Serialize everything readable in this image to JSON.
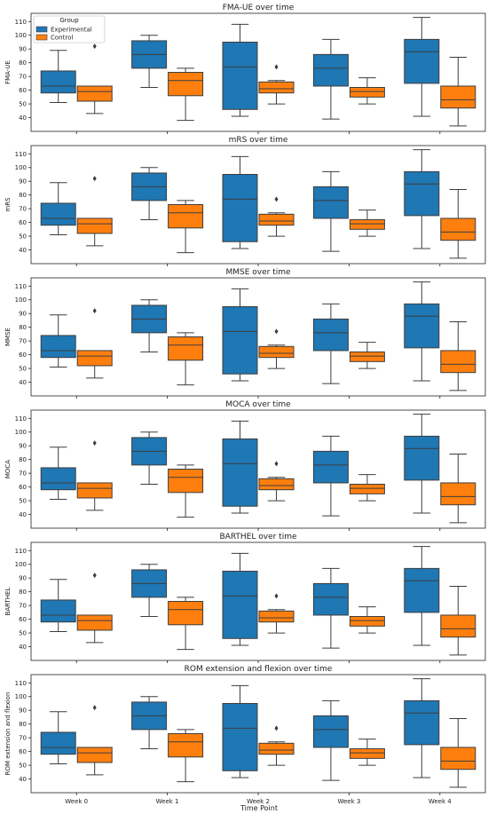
{
  "figure": {
    "xlabel": "Time Point",
    "legend": {
      "title": "Group",
      "placement": "upper-left"
    }
  },
  "chart_data": [
    {
      "type": "box",
      "title": "FMA-UE over time",
      "ylabel": "FMA-UE",
      "ylim": [
        30,
        116
      ],
      "yticks": [
        40,
        50,
        60,
        70,
        80,
        90,
        100,
        110
      ],
      "categories": [
        "Week 0",
        "Week 1",
        "Week 2",
        "Week 3",
        "Week 4"
      ],
      "series": [
        {
          "name": "Experimental",
          "color": "#1f77b4",
          "boxes": [
            {
              "whisker_low": 51,
              "q1": 58,
              "median": 63,
              "q3": 74,
              "whisker_high": 89,
              "outliers": []
            },
            {
              "whisker_low": 62,
              "q1": 76,
              "median": 86,
              "q3": 96,
              "whisker_high": 100,
              "outliers": []
            },
            {
              "whisker_low": 41,
              "q1": 46,
              "median": 77,
              "q3": 95,
              "whisker_high": 108,
              "outliers": []
            },
            {
              "whisker_low": 39,
              "q1": 63,
              "median": 76,
              "q3": 86,
              "whisker_high": 97,
              "outliers": []
            },
            {
              "whisker_low": 41,
              "q1": 65,
              "median": 88,
              "q3": 97,
              "whisker_high": 113,
              "outliers": []
            }
          ]
        },
        {
          "name": "Control",
          "color": "#ff7f0e",
          "boxes": [
            {
              "whisker_low": 43,
              "q1": 52,
              "median": 59,
              "q3": 63,
              "whisker_high": 63,
              "outliers": [
                92
              ]
            },
            {
              "whisker_low": 38,
              "q1": 56,
              "median": 67,
              "q3": 73,
              "whisker_high": 76,
              "outliers": []
            },
            {
              "whisker_low": 50,
              "q1": 58,
              "median": 61,
              "q3": 66,
              "whisker_high": 67,
              "outliers": [
                77
              ]
            },
            {
              "whisker_low": 50,
              "q1": 55,
              "median": 59,
              "q3": 62,
              "whisker_high": 69,
              "outliers": []
            },
            {
              "whisker_low": 34,
              "q1": 47,
              "median": 53,
              "q3": 63,
              "whisker_high": 84,
              "outliers": []
            }
          ]
        }
      ]
    },
    {
      "type": "box",
      "title": "mRS over time",
      "ylabel": "mRS",
      "ylim": [
        30,
        116
      ],
      "yticks": [
        40,
        50,
        60,
        70,
        80,
        90,
        100,
        110
      ],
      "categories": [
        "Week 0",
        "Week 1",
        "Week 2",
        "Week 3",
        "Week 4"
      ],
      "series": [
        {
          "name": "Experimental",
          "color": "#1f77b4",
          "boxes": [
            {
              "whisker_low": 51,
              "q1": 58,
              "median": 63,
              "q3": 74,
              "whisker_high": 89,
              "outliers": []
            },
            {
              "whisker_low": 62,
              "q1": 76,
              "median": 86,
              "q3": 96,
              "whisker_high": 100,
              "outliers": []
            },
            {
              "whisker_low": 41,
              "q1": 46,
              "median": 77,
              "q3": 95,
              "whisker_high": 108,
              "outliers": []
            },
            {
              "whisker_low": 39,
              "q1": 63,
              "median": 76,
              "q3": 86,
              "whisker_high": 97,
              "outliers": []
            },
            {
              "whisker_low": 41,
              "q1": 65,
              "median": 88,
              "q3": 97,
              "whisker_high": 113,
              "outliers": []
            }
          ]
        },
        {
          "name": "Control",
          "color": "#ff7f0e",
          "boxes": [
            {
              "whisker_low": 43,
              "q1": 52,
              "median": 59,
              "q3": 63,
              "whisker_high": 63,
              "outliers": [
                92
              ]
            },
            {
              "whisker_low": 38,
              "q1": 56,
              "median": 67,
              "q3": 73,
              "whisker_high": 76,
              "outliers": []
            },
            {
              "whisker_low": 50,
              "q1": 58,
              "median": 61,
              "q3": 66,
              "whisker_high": 67,
              "outliers": [
                77
              ]
            },
            {
              "whisker_low": 50,
              "q1": 55,
              "median": 59,
              "q3": 62,
              "whisker_high": 69,
              "outliers": []
            },
            {
              "whisker_low": 34,
              "q1": 47,
              "median": 53,
              "q3": 63,
              "whisker_high": 84,
              "outliers": []
            }
          ]
        }
      ]
    },
    {
      "type": "box",
      "title": "MMSE over time",
      "ylabel": "MMSE",
      "ylim": [
        30,
        116
      ],
      "yticks": [
        40,
        50,
        60,
        70,
        80,
        90,
        100,
        110
      ],
      "categories": [
        "Week 0",
        "Week 1",
        "Week 2",
        "Week 3",
        "Week 4"
      ],
      "series": [
        {
          "name": "Experimental",
          "color": "#1f77b4",
          "boxes": [
            {
              "whisker_low": 51,
              "q1": 58,
              "median": 63,
              "q3": 74,
              "whisker_high": 89,
              "outliers": []
            },
            {
              "whisker_low": 62,
              "q1": 76,
              "median": 86,
              "q3": 96,
              "whisker_high": 100,
              "outliers": []
            },
            {
              "whisker_low": 41,
              "q1": 46,
              "median": 77,
              "q3": 95,
              "whisker_high": 108,
              "outliers": []
            },
            {
              "whisker_low": 39,
              "q1": 63,
              "median": 76,
              "q3": 86,
              "whisker_high": 97,
              "outliers": []
            },
            {
              "whisker_low": 41,
              "q1": 65,
              "median": 88,
              "q3": 97,
              "whisker_high": 113,
              "outliers": []
            }
          ]
        },
        {
          "name": "Control",
          "color": "#ff7f0e",
          "boxes": [
            {
              "whisker_low": 43,
              "q1": 52,
              "median": 59,
              "q3": 63,
              "whisker_high": 63,
              "outliers": [
                92
              ]
            },
            {
              "whisker_low": 38,
              "q1": 56,
              "median": 67,
              "q3": 73,
              "whisker_high": 76,
              "outliers": []
            },
            {
              "whisker_low": 50,
              "q1": 58,
              "median": 61,
              "q3": 66,
              "whisker_high": 67,
              "outliers": [
                77
              ]
            },
            {
              "whisker_low": 50,
              "q1": 55,
              "median": 59,
              "q3": 62,
              "whisker_high": 69,
              "outliers": []
            },
            {
              "whisker_low": 34,
              "q1": 47,
              "median": 53,
              "q3": 63,
              "whisker_high": 84,
              "outliers": []
            }
          ]
        }
      ]
    },
    {
      "type": "box",
      "title": "MOCA over time",
      "ylabel": "MOCA",
      "ylim": [
        30,
        116
      ],
      "yticks": [
        40,
        50,
        60,
        70,
        80,
        90,
        100,
        110
      ],
      "categories": [
        "Week 0",
        "Week 1",
        "Week 2",
        "Week 3",
        "Week 4"
      ],
      "series": [
        {
          "name": "Experimental",
          "color": "#1f77b4",
          "boxes": [
            {
              "whisker_low": 51,
              "q1": 58,
              "median": 63,
              "q3": 74,
              "whisker_high": 89,
              "outliers": []
            },
            {
              "whisker_low": 62,
              "q1": 76,
              "median": 86,
              "q3": 96,
              "whisker_high": 100,
              "outliers": []
            },
            {
              "whisker_low": 41,
              "q1": 46,
              "median": 77,
              "q3": 95,
              "whisker_high": 108,
              "outliers": []
            },
            {
              "whisker_low": 39,
              "q1": 63,
              "median": 76,
              "q3": 86,
              "whisker_high": 97,
              "outliers": []
            },
            {
              "whisker_low": 41,
              "q1": 65,
              "median": 88,
              "q3": 97,
              "whisker_high": 113,
              "outliers": []
            }
          ]
        },
        {
          "name": "Control",
          "color": "#ff7f0e",
          "boxes": [
            {
              "whisker_low": 43,
              "q1": 52,
              "median": 59,
              "q3": 63,
              "whisker_high": 63,
              "outliers": [
                92
              ]
            },
            {
              "whisker_low": 38,
              "q1": 56,
              "median": 67,
              "q3": 73,
              "whisker_high": 76,
              "outliers": []
            },
            {
              "whisker_low": 50,
              "q1": 58,
              "median": 61,
              "q3": 66,
              "whisker_high": 67,
              "outliers": [
                77
              ]
            },
            {
              "whisker_low": 50,
              "q1": 55,
              "median": 59,
              "q3": 62,
              "whisker_high": 69,
              "outliers": []
            },
            {
              "whisker_low": 34,
              "q1": 47,
              "median": 53,
              "q3": 63,
              "whisker_high": 84,
              "outliers": []
            }
          ]
        }
      ]
    },
    {
      "type": "box",
      "title": "BARTHEL over time",
      "ylabel": "BARTHEL",
      "ylim": [
        30,
        116
      ],
      "yticks": [
        40,
        50,
        60,
        70,
        80,
        90,
        100,
        110
      ],
      "categories": [
        "Week 0",
        "Week 1",
        "Week 2",
        "Week 3",
        "Week 4"
      ],
      "series": [
        {
          "name": "Experimental",
          "color": "#1f77b4",
          "boxes": [
            {
              "whisker_low": 51,
              "q1": 58,
              "median": 63,
              "q3": 74,
              "whisker_high": 89,
              "outliers": []
            },
            {
              "whisker_low": 62,
              "q1": 76,
              "median": 86,
              "q3": 96,
              "whisker_high": 100,
              "outliers": []
            },
            {
              "whisker_low": 41,
              "q1": 46,
              "median": 77,
              "q3": 95,
              "whisker_high": 108,
              "outliers": []
            },
            {
              "whisker_low": 39,
              "q1": 63,
              "median": 76,
              "q3": 86,
              "whisker_high": 97,
              "outliers": []
            },
            {
              "whisker_low": 41,
              "q1": 65,
              "median": 88,
              "q3": 97,
              "whisker_high": 113,
              "outliers": []
            }
          ]
        },
        {
          "name": "Control",
          "color": "#ff7f0e",
          "boxes": [
            {
              "whisker_low": 43,
              "q1": 52,
              "median": 59,
              "q3": 63,
              "whisker_high": 63,
              "outliers": [
                92
              ]
            },
            {
              "whisker_low": 38,
              "q1": 56,
              "median": 67,
              "q3": 73,
              "whisker_high": 76,
              "outliers": []
            },
            {
              "whisker_low": 50,
              "q1": 58,
              "median": 61,
              "q3": 66,
              "whisker_high": 67,
              "outliers": [
                77
              ]
            },
            {
              "whisker_low": 50,
              "q1": 55,
              "median": 59,
              "q3": 62,
              "whisker_high": 69,
              "outliers": []
            },
            {
              "whisker_low": 34,
              "q1": 47,
              "median": 53,
              "q3": 63,
              "whisker_high": 84,
              "outliers": []
            }
          ]
        }
      ]
    },
    {
      "type": "box",
      "title": "ROM extension and flexion over time",
      "ylabel": "ROM extension and flexion",
      "ylim": [
        30,
        116
      ],
      "yticks": [
        40,
        50,
        60,
        70,
        80,
        90,
        100,
        110
      ],
      "categories": [
        "Week 0",
        "Week 1",
        "Week 2",
        "Week 3",
        "Week 4"
      ],
      "series": [
        {
          "name": "Experimental",
          "color": "#1f77b4",
          "boxes": [
            {
              "whisker_low": 51,
              "q1": 58,
              "median": 63,
              "q3": 74,
              "whisker_high": 89,
              "outliers": []
            },
            {
              "whisker_low": 62,
              "q1": 76,
              "median": 86,
              "q3": 96,
              "whisker_high": 100,
              "outliers": []
            },
            {
              "whisker_low": 41,
              "q1": 46,
              "median": 77,
              "q3": 95,
              "whisker_high": 108,
              "outliers": []
            },
            {
              "whisker_low": 39,
              "q1": 63,
              "median": 76,
              "q3": 86,
              "whisker_high": 97,
              "outliers": []
            },
            {
              "whisker_low": 41,
              "q1": 65,
              "median": 88,
              "q3": 97,
              "whisker_high": 113,
              "outliers": []
            }
          ]
        },
        {
          "name": "Control",
          "color": "#ff7f0e",
          "boxes": [
            {
              "whisker_low": 43,
              "q1": 52,
              "median": 59,
              "q3": 63,
              "whisker_high": 63,
              "outliers": [
                92
              ]
            },
            {
              "whisker_low": 38,
              "q1": 56,
              "median": 67,
              "q3": 73,
              "whisker_high": 76,
              "outliers": []
            },
            {
              "whisker_low": 50,
              "q1": 58,
              "median": 61,
              "q3": 66,
              "whisker_high": 67,
              "outliers": [
                77
              ]
            },
            {
              "whisker_low": 50,
              "q1": 55,
              "median": 59,
              "q3": 62,
              "whisker_high": 69,
              "outliers": []
            },
            {
              "whisker_low": 34,
              "q1": 47,
              "median": 53,
              "q3": 63,
              "whisker_high": 84,
              "outliers": []
            }
          ]
        }
      ]
    }
  ]
}
